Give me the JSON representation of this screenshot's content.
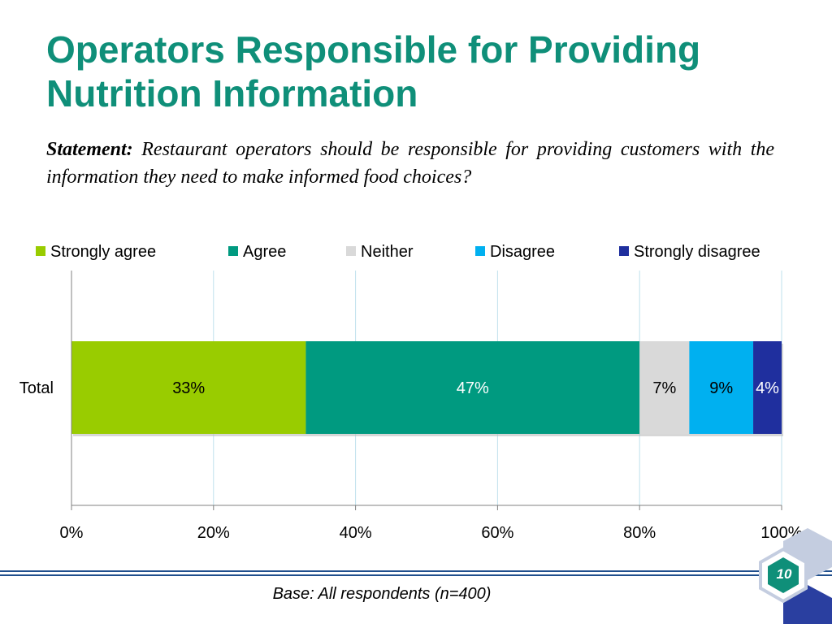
{
  "slide": {
    "title": "Operators Responsible for Providing Nutrition Information",
    "statement_lead": "Statement:",
    "statement_text": "Restaurant operators should be responsible for providing customers with the information they need to make informed food choices?",
    "base_note": "Base: All respondents (n=400)",
    "page_number": "10"
  },
  "chart_data": {
    "type": "bar",
    "orientation": "horizontal",
    "stacked": true,
    "categories": [
      "Total"
    ],
    "series": [
      {
        "name": "Strongly agree",
        "values": [
          33
        ],
        "label": "33%",
        "color": "#99cc00",
        "label_color": "#000000"
      },
      {
        "name": "Agree",
        "values": [
          47
        ],
        "label": "47%",
        "color": "#009a80",
        "label_color": "#ffffff"
      },
      {
        "name": "Neither",
        "values": [
          7
        ],
        "label": "7%",
        "color": "#d9d9d9",
        "label_color": "#000000"
      },
      {
        "name": "Disagree",
        "values": [
          9
        ],
        "label": "9%",
        "color": "#00b0f0",
        "label_color": "#000000"
      },
      {
        "name": "Strongly disagree",
        "values": [
          4
        ],
        "label": "4%",
        "color": "#1f2f9e",
        "label_color": "#ffffff"
      }
    ],
    "xlim": [
      0,
      100
    ],
    "xticks": [
      "0%",
      "20%",
      "40%",
      "60%",
      "80%",
      "100%"
    ],
    "grid": true,
    "legend": "top"
  }
}
